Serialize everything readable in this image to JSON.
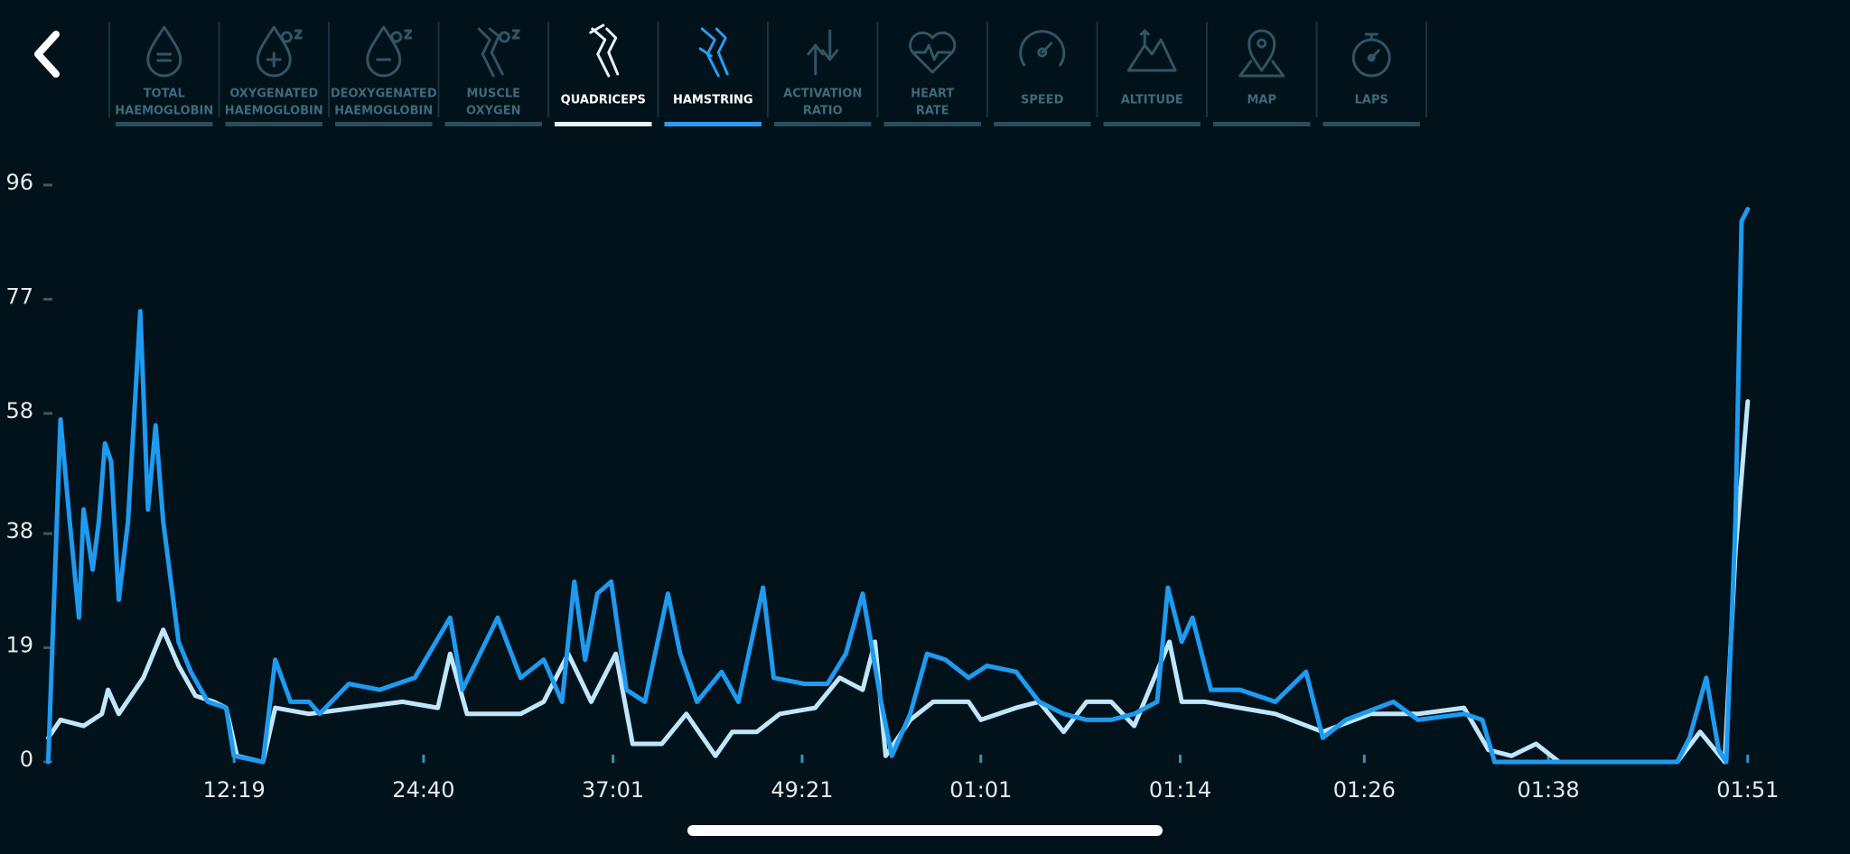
{
  "tabs": [
    {
      "lines": [
        "TOTAL",
        "HAEMOGLOBIN"
      ],
      "color": "#2f5566"
    },
    {
      "lines": [
        "OXYGENATED",
        "HAEMOGLOBIN"
      ],
      "color": "#2f5566"
    },
    {
      "lines": [
        "DEOXYGENATED",
        "HAEMOGLOBIN"
      ],
      "color": "#2f5566"
    },
    {
      "lines": [
        "MUSCLE",
        "OXYGEN"
      ],
      "color": "#2f5566"
    },
    {
      "lines": [
        "QUADRICEPS"
      ],
      "color": "#e8f4fb"
    },
    {
      "lines": [
        "HAMSTRING"
      ],
      "color": "#2a9cf0"
    },
    {
      "lines": [
        "ACTIVATION",
        "RATIO"
      ],
      "color": "#2f5566"
    },
    {
      "lines": [
        "HEART",
        "RATE"
      ],
      "color": "#2f5566"
    },
    {
      "lines": [
        "SPEED"
      ],
      "color": "#2f5566"
    },
    {
      "lines": [
        "ALTITUDE"
      ],
      "color": "#2f5566"
    },
    {
      "lines": [
        "MAP"
      ],
      "color": "#2f5566"
    },
    {
      "lines": [
        "LAPS"
      ],
      "color": "#2f5566"
    }
  ],
  "chart_data": {
    "type": "line",
    "xlim": [
      0,
      113
    ],
    "ylim": [
      0,
      96
    ],
    "yticks": [
      0,
      19,
      38,
      58,
      77,
      96
    ],
    "xticks": [
      {
        "value": 12.32,
        "label": "12:19"
      },
      {
        "value": 24.67,
        "label": "24:40"
      },
      {
        "value": 37.02,
        "label": "37:01"
      },
      {
        "value": 49.35,
        "label": "49:21"
      },
      {
        "value": 61,
        "label": "01:01"
      },
      {
        "value": 74,
        "label": "01:14"
      },
      {
        "value": 86,
        "label": "01:26"
      },
      {
        "value": 98,
        "label": "01:38"
      },
      {
        "value": 111,
        "label": "01:51"
      }
    ],
    "series": [
      {
        "color": "#bfe6fb",
        "x": [
          0.2,
          1.0,
          2.5,
          3.7,
          4.1,
          4.8,
          6.4,
          7.7,
          8.7,
          9.8,
          11.0,
          11.8,
          12.5,
          14.2,
          15.0,
          17.2,
          20.2,
          23.3,
          25.6,
          26.4,
          27.5,
          29.5,
          31.0,
          32.5,
          34.1,
          35.6,
          37.2,
          38.3,
          40.2,
          41.8,
          43.7,
          44.8,
          46.4,
          47.9,
          50.2,
          51.8,
          53.3,
          54.1,
          54.8,
          56.4,
          57.9,
          60.2,
          61.0,
          63.3,
          64.8,
          66.4,
          67.9,
          69.5,
          71.0,
          73.3,
          74.1,
          75.6,
          77.9,
          80.2,
          83.3,
          86.4,
          89.5,
          92.5,
          94.1,
          95.6,
          97.2,
          98.7,
          106.4,
          107.9,
          109.5,
          110.2,
          111.0
        ],
        "values": [
          4,
          7,
          6,
          8,
          12,
          8,
          14,
          22,
          16,
          11,
          10,
          9,
          1,
          0,
          9,
          8,
          9,
          10,
          9,
          18,
          8,
          8,
          8,
          10,
          18,
          10,
          18,
          3,
          3,
          8,
          1,
          5,
          5,
          8,
          9,
          14,
          12,
          20,
          1,
          7,
          10,
          10,
          7,
          9,
          10,
          5,
          10,
          10,
          6,
          20,
          10,
          10,
          9,
          8,
          5,
          8,
          8,
          9,
          2,
          1,
          3,
          0,
          0,
          5,
          0,
          35,
          60
        ]
      },
      {
        "color": "#1e9bf0",
        "x": [
          0.2,
          1.0,
          1.6,
          2.2,
          2.5,
          3.1,
          3.5,
          3.9,
          4.3,
          4.8,
          5.4,
          6.2,
          6.7,
          7.2,
          7.7,
          8.2,
          8.7,
          9.5,
          10.6,
          11.8,
          12.3,
          14.2,
          15.0,
          16.0,
          17.2,
          17.9,
          19.8,
          21.8,
          24.1,
          26.4,
          27.2,
          29.5,
          31.0,
          32.5,
          33.7,
          34.5,
          35.2,
          36.0,
          36.9,
          37.9,
          39.1,
          40.6,
          41.4,
          42.5,
          44.1,
          45.2,
          46.8,
          47.5,
          49.5,
          51.0,
          52.2,
          53.3,
          54.5,
          55.2,
          56.4,
          57.5,
          58.7,
          60.2,
          61.4,
          63.3,
          64.8,
          66.4,
          67.9,
          69.5,
          71.0,
          72.5,
          73.2,
          74.1,
          74.8,
          76.0,
          77.9,
          80.2,
          82.2,
          83.3,
          84.8,
          87.9,
          89.5,
          92.5,
          93.7,
          94.5,
          97.2,
          106.4,
          107.2,
          108.3,
          109.1,
          109.6,
          110.2,
          110.6,
          111.0
        ],
        "values": [
          0,
          57,
          40,
          24,
          42,
          32,
          40,
          53,
          50,
          27,
          40,
          75,
          42,
          56,
          40,
          30,
          20,
          15,
          10,
          9,
          1,
          0,
          17,
          10,
          10,
          8,
          13,
          12,
          14,
          24,
          12,
          24,
          14,
          17,
          10,
          30,
          17,
          28,
          30,
          12,
          10,
          28,
          18,
          10,
          15,
          10,
          29,
          14,
          13,
          13,
          18,
          28,
          10,
          1,
          8,
          18,
          17,
          14,
          16,
          15,
          10,
          8,
          7,
          7,
          8,
          10,
          29,
          20,
          24,
          12,
          12,
          10,
          15,
          4,
          7,
          10,
          7,
          8,
          7,
          0,
          0,
          0,
          4,
          14,
          2,
          0,
          40,
          90,
          92
        ]
      }
    ]
  }
}
